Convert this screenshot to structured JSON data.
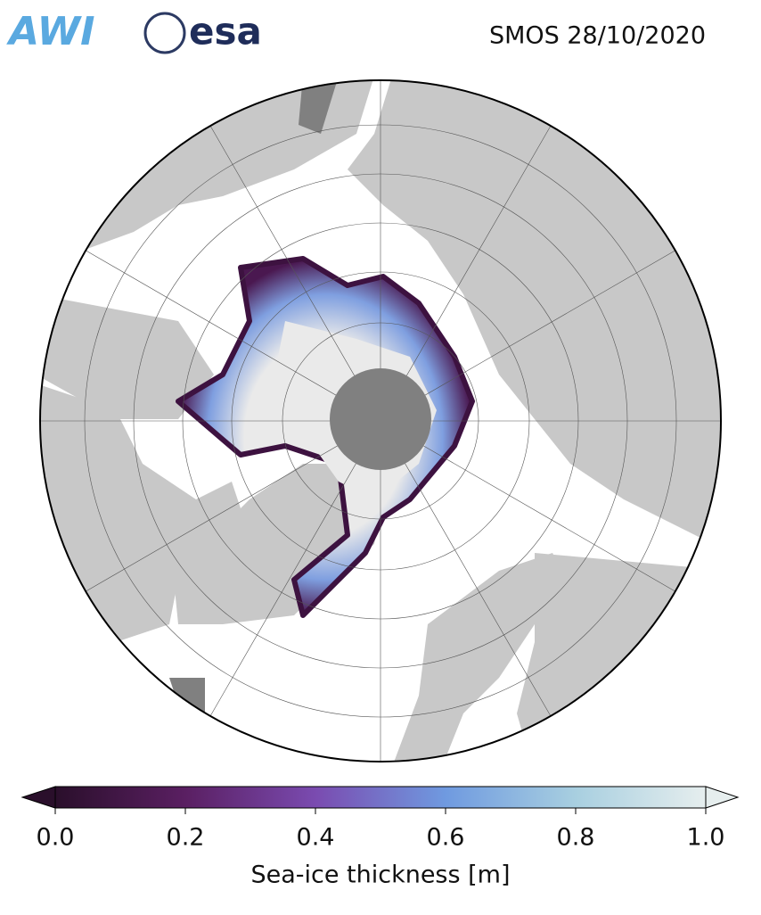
{
  "logos": [
    "AWI",
    "esa"
  ],
  "title": "SMOS 28/10/2020",
  "colorbar": {
    "label": "Sea-ice thickness [m]",
    "lim": [
      0,
      1
    ],
    "ticks": [
      {
        "value": 0,
        "label": "0.0"
      },
      {
        "value": 0.2,
        "label": "0.2"
      },
      {
        "value": 0.4,
        "label": "0.4"
      },
      {
        "value": 0.6,
        "label": "0.6"
      },
      {
        "value": 0.8,
        "label": "0.8"
      },
      {
        "value": 1,
        "label": "1.0"
      }
    ],
    "colors": [
      "#2a0f2b",
      "#5a1f62",
      "#7a4bb0",
      "#6f9ae0",
      "#a8cfe0",
      "#e6eeee"
    ]
  }
}
